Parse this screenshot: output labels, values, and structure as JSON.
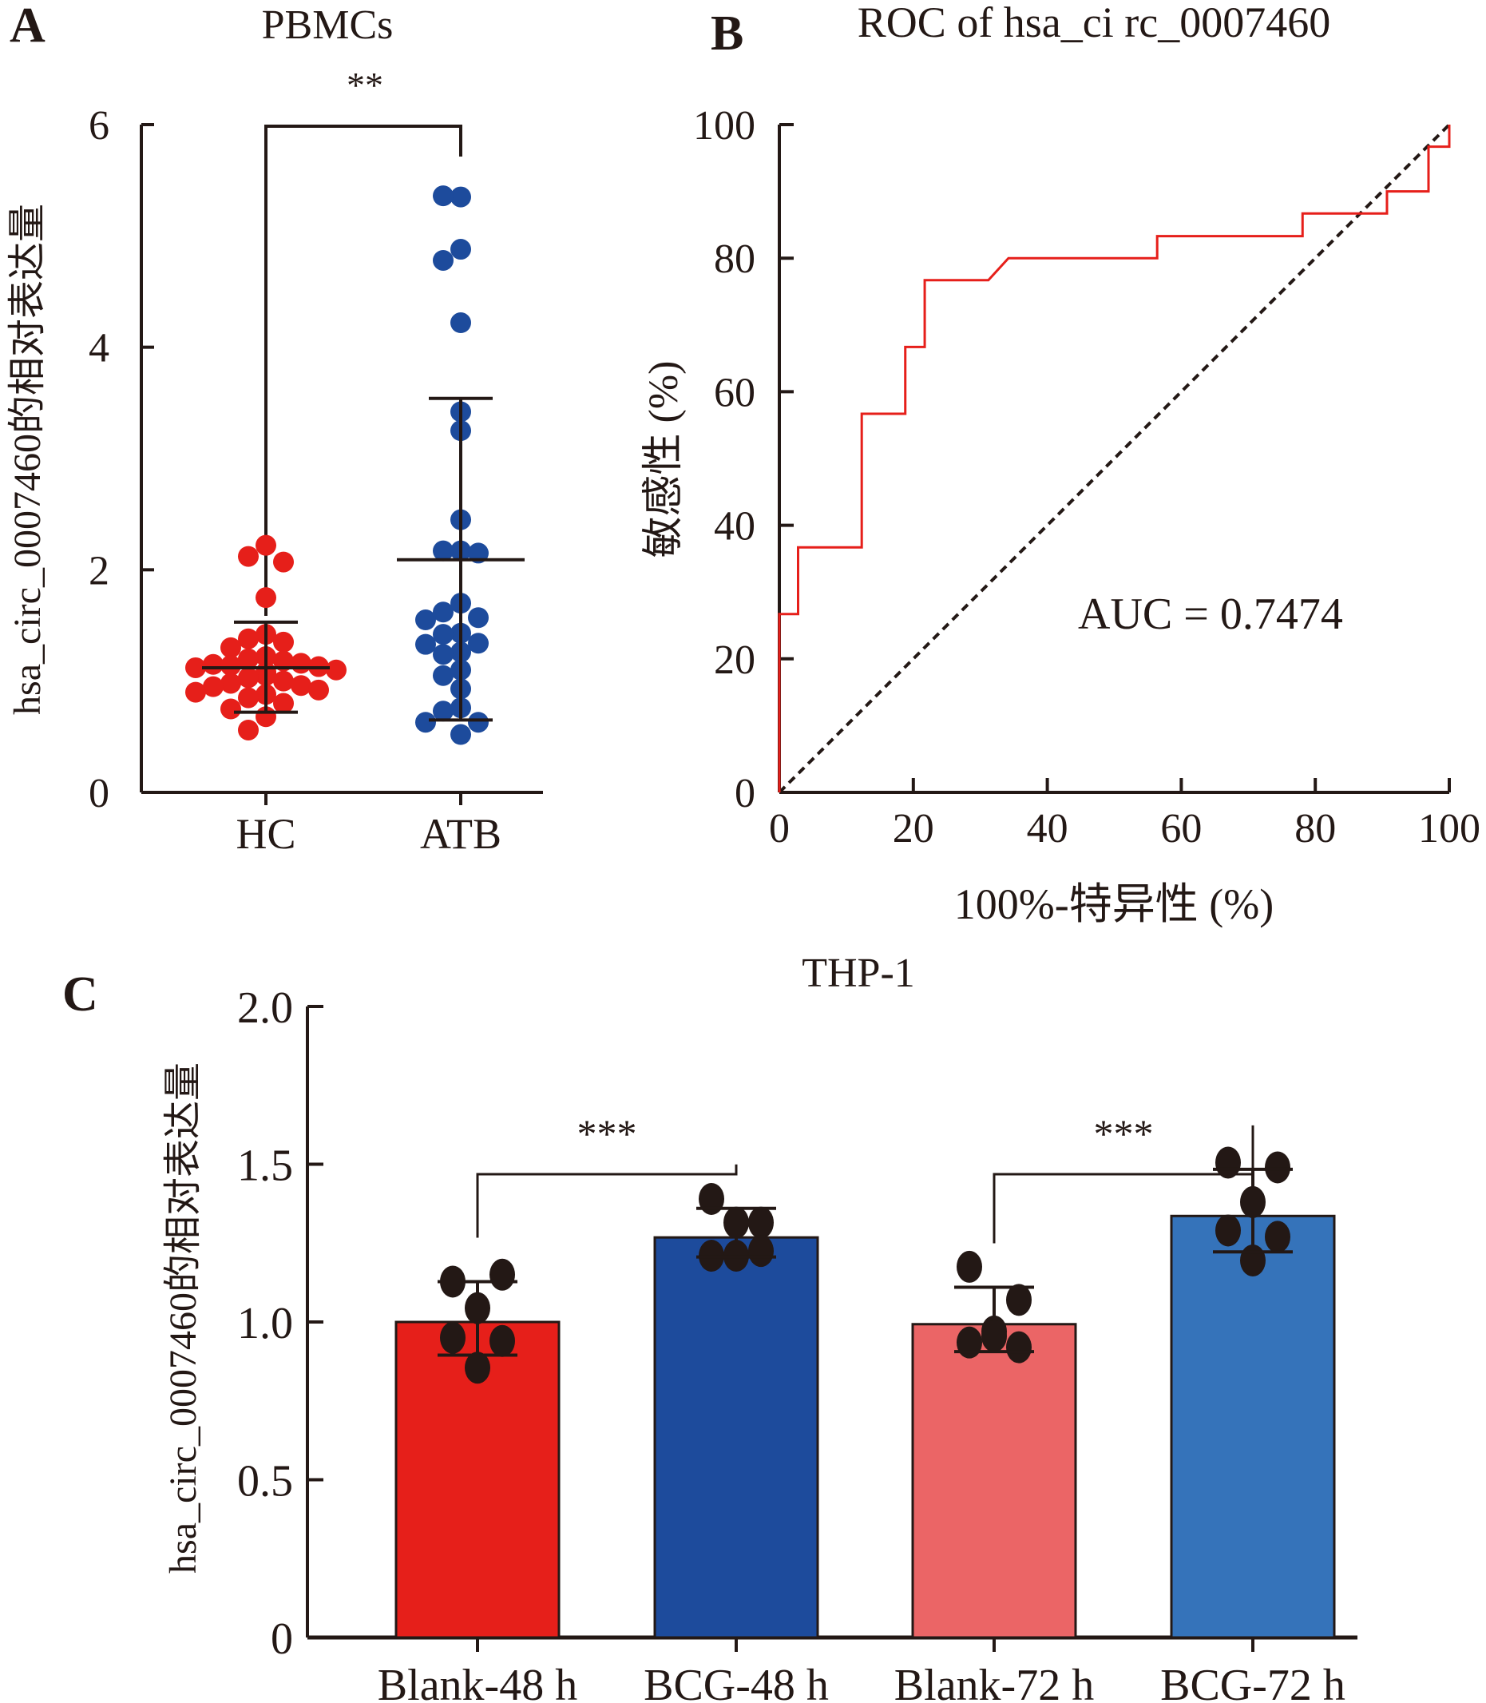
{
  "chart_data": [
    {
      "panel_label": "A",
      "type": "scatter",
      "title": "PBMCs",
      "xlabel": "",
      "ylabel": "hsa_circ_0007460的相对表达量",
      "ylim": [
        0,
        6
      ],
      "yticks": [
        "0",
        "2",
        "4",
        "6"
      ],
      "categories": [
        "HC",
        "ATB"
      ],
      "significance": "**",
      "series": [
        {
          "name": "HC",
          "color": "#E61F1A",
          "mean": 1.12,
          "sd_upper": 1.53,
          "sd_lower": 0.72,
          "values": [
            2.22,
            2.12,
            2.07,
            1.75,
            1.42,
            1.38,
            1.35,
            1.3,
            1.22,
            1.2,
            1.18,
            1.16,
            1.15,
            1.14,
            1.13,
            1.12,
            1.1,
            1.08,
            1.07,
            1.05,
            1.03,
            1.0,
            0.98,
            0.96,
            0.95,
            0.92,
            0.9,
            0.88,
            0.85,
            0.8,
            0.75,
            0.68,
            0.56
          ]
        },
        {
          "name": "ATB",
          "color": "#1D4B9C",
          "mean": 2.09,
          "sd_upper": 3.54,
          "sd_lower": 0.65,
          "values": [
            5.35,
            5.36,
            4.88,
            4.78,
            4.22,
            3.42,
            3.25,
            2.45,
            2.17,
            2.17,
            2.15,
            1.7,
            1.62,
            1.57,
            1.55,
            1.43,
            1.42,
            1.34,
            1.33,
            1.26,
            1.24,
            1.1,
            1.05,
            0.93,
            0.76,
            0.73,
            0.63,
            0.63,
            0.52
          ]
        }
      ]
    },
    {
      "panel_label": "B",
      "type": "line",
      "title": "ROC of hsa_ci rc_0007460",
      "xlabel": "100%-特异性 (%)",
      "ylabel": "敏感性 (%)",
      "xlim": [
        0,
        100
      ],
      "ylim": [
        0,
        100
      ],
      "xticks": [
        "0",
        "20",
        "40",
        "60",
        "80",
        "100"
      ],
      "yticks": [
        "0",
        "20",
        "40",
        "60",
        "80",
        "100"
      ],
      "annotation": "AUC = 0.7474",
      "series": [
        {
          "name": "ROC",
          "color": "#E61F1A",
          "points": [
            [
              0,
              0
            ],
            [
              0,
              26.7
            ],
            [
              2.8,
              26.7
            ],
            [
              2.8,
              36.7
            ],
            [
              12.3,
              36.7
            ],
            [
              12.3,
              56.7
            ],
            [
              18.8,
              56.7
            ],
            [
              18.8,
              66.7
            ],
            [
              21.7,
              66.7
            ],
            [
              21.7,
              76.7
            ],
            [
              31.2,
              76.7
            ],
            [
              34.2,
              80
            ],
            [
              56.4,
              80
            ],
            [
              56.4,
              83.3
            ],
            [
              78.1,
              83.3
            ],
            [
              78.1,
              86.7
            ],
            [
              90.7,
              86.7
            ],
            [
              90.7,
              90
            ],
            [
              96.9,
              90
            ],
            [
              96.9,
              96.7
            ],
            [
              100,
              96.7
            ],
            [
              100,
              100
            ]
          ]
        },
        {
          "name": "reference",
          "color": "#231815",
          "dashed": true,
          "points": [
            [
              0,
              0
            ],
            [
              100,
              100
            ]
          ]
        }
      ]
    },
    {
      "panel_label": "C",
      "type": "bar",
      "title": "THP-1",
      "xlabel": "",
      "ylabel": "hsa_circ_0007460的相对表达量",
      "ylim": [
        0,
        2.0
      ],
      "yticks": [
        "0",
        "0.5",
        "1.0",
        "1.5",
        "2.0"
      ],
      "categories": [
        "Blank-48 h",
        "BCG-48 h",
        "Blank-72 h",
        "BCG-72 h"
      ],
      "significance": [
        {
          "from": 0,
          "to": 1,
          "label": "***"
        },
        {
          "from": 2,
          "to": 3,
          "label": "***"
        }
      ],
      "series": [
        {
          "name": "Blank-48 h",
          "color": "#E61F1A",
          "mean": 1.0,
          "sd_upper": 1.128,
          "sd_lower": 0.895,
          "values": [
            1.128,
            1.15,
            1.044,
            0.95,
            0.94,
            0.855
          ]
        },
        {
          "name": "BCG-48 h",
          "color": "#1D4B9C",
          "mean": 1.268,
          "sd_upper": 1.36,
          "sd_lower": 1.206,
          "values": [
            1.39,
            1.315,
            1.315,
            1.21,
            1.225,
            1.21
          ]
        },
        {
          "name": "Blank-72 h",
          "color": "#EB6566",
          "mean": 0.993,
          "sd_upper": 1.11,
          "sd_lower": 0.906,
          "values": [
            1.175,
            1.07,
            0.97,
            0.935,
            0.92,
            0.955
          ]
        },
        {
          "name": "BCG-72 h",
          "color": "#3573BA",
          "mean": 1.336,
          "sd_upper": 1.484,
          "sd_lower": 1.222,
          "values": [
            1.505,
            1.49,
            1.38,
            1.29,
            1.27,
            1.195
          ]
        }
      ]
    }
  ]
}
